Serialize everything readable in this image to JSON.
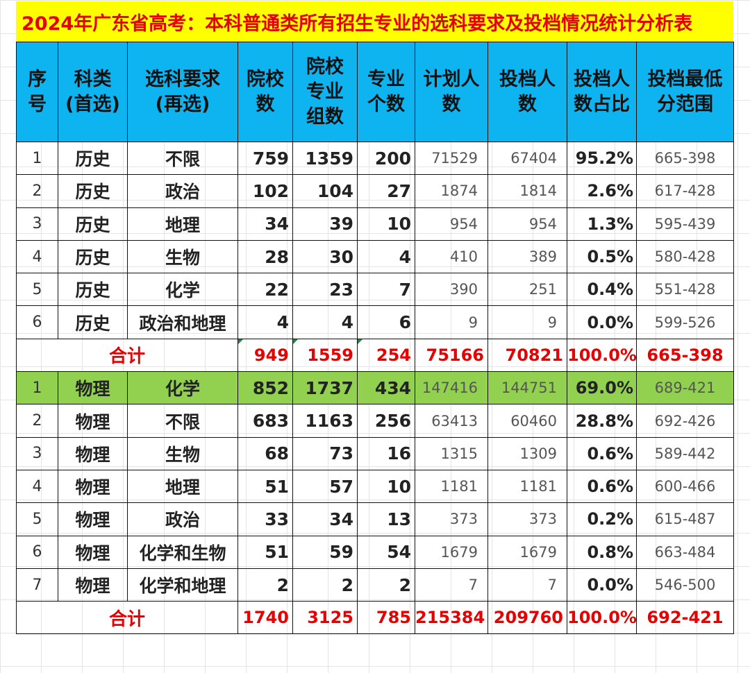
{
  "title": "2024年广东省高考：本科普通类所有招生专业的选科要求及投档情况统计分析表",
  "headers": [
    "序号",
    "科类(首选)",
    "选科要求(再选)",
    "院校数",
    "院校专业组数",
    "专业个数",
    "计划人数",
    "投档人数",
    "投档人数占比",
    "投档最低分范围"
  ],
  "header_lines": [
    [
      "序",
      "号"
    ],
    [
      "科类",
      "(首选)"
    ],
    [
      "选科要求",
      "(再选)"
    ],
    [
      "院校",
      "数"
    ],
    [
      "院校",
      "专业",
      "组数"
    ],
    [
      "专业",
      "个数"
    ],
    [
      "计划人",
      "数"
    ],
    [
      "投档人",
      "数"
    ],
    [
      "投档人",
      "数占比"
    ],
    [
      "投档最低",
      "分范围"
    ]
  ],
  "history_rows": [
    [
      "1",
      "历史",
      "不限",
      "759",
      "1359",
      "200",
      "71529",
      "67404",
      "95.2%",
      "665-398"
    ],
    [
      "2",
      "历史",
      "政治",
      "102",
      "104",
      "27",
      "1874",
      "1814",
      "2.6%",
      "617-428"
    ],
    [
      "3",
      "历史",
      "地理",
      "34",
      "39",
      "10",
      "954",
      "954",
      "1.3%",
      "595-439"
    ],
    [
      "4",
      "历史",
      "生物",
      "28",
      "30",
      "4",
      "410",
      "389",
      "0.5%",
      "580-428"
    ],
    [
      "5",
      "历史",
      "化学",
      "22",
      "23",
      "7",
      "390",
      "251",
      "0.4%",
      "551-428"
    ],
    [
      "6",
      "历史",
      "政治和地理",
      "4",
      "4",
      "6",
      "9",
      "9",
      "0.0%",
      "599-526"
    ]
  ],
  "history_total": [
    "合计",
    "949",
    "1559",
    "254",
    "75166",
    "70821",
    "100.0%",
    "665-398"
  ],
  "physics_rows": [
    [
      "1",
      "物理",
      "化学",
      "852",
      "1737",
      "434",
      "147416",
      "144751",
      "69.0%",
      "689-421"
    ],
    [
      "2",
      "物理",
      "不限",
      "683",
      "1163",
      "256",
      "63413",
      "60460",
      "28.8%",
      "692-426"
    ],
    [
      "3",
      "物理",
      "生物",
      "68",
      "73",
      "16",
      "1315",
      "1309",
      "0.6%",
      "589-442"
    ],
    [
      "4",
      "物理",
      "地理",
      "51",
      "57",
      "10",
      "1181",
      "1181",
      "0.6%",
      "600-466"
    ],
    [
      "5",
      "物理",
      "政治",
      "33",
      "34",
      "13",
      "373",
      "373",
      "0.2%",
      "615-487"
    ],
    [
      "6",
      "物理",
      "化学和生物",
      "51",
      "59",
      "54",
      "1679",
      "1679",
      "0.8%",
      "663-484"
    ],
    [
      "7",
      "物理",
      "化学和地理",
      "2",
      "2",
      "2",
      "7",
      "7",
      "0.0%",
      "546-500"
    ]
  ],
  "physics_total": [
    "合计",
    "1740",
    "3125",
    "785",
    "215384",
    "209760",
    "100.0%",
    "692-421"
  ],
  "colors": {
    "title_bg": "#ffff00",
    "title_text": "#e60000",
    "header_bg": "#0db4ef",
    "highlight_row": "#92d050",
    "total_text": "#e60000"
  },
  "highlight": {
    "section": "physics",
    "row": 0
  }
}
